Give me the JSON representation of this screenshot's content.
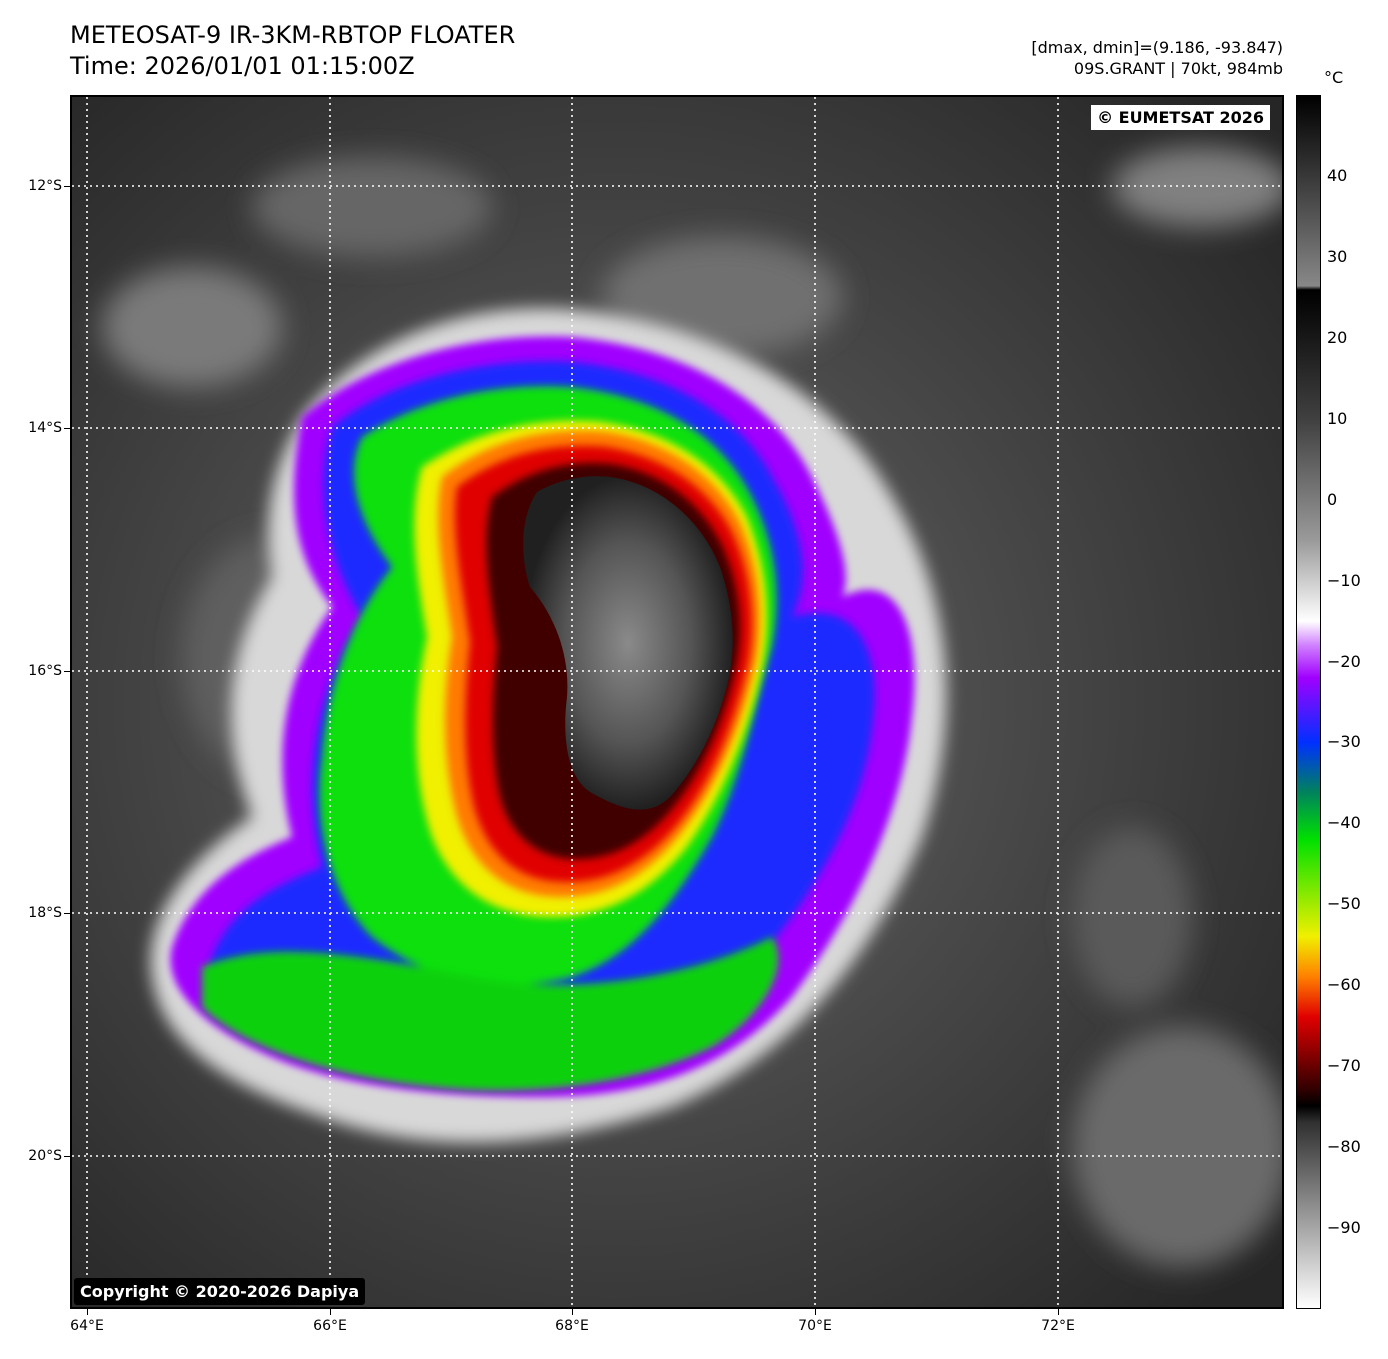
{
  "header": {
    "title": "METEOSAT-9 IR-3KM-RBTOP FLOATER",
    "time": "Time: 2026/01/01 01:15:00Z",
    "range": "[dmax, dmin]=(9.186, -93.847)",
    "storm": "09S.GRANT | 70kt, 984mb"
  },
  "map": {
    "copyright_eumetsat": "© EUMETSAT 2026",
    "copyright_dapiya": "Copyright © 2020-2026 Dapiya",
    "lat_labels": [
      "12°S",
      "14°S",
      "16°S",
      "18°S",
      "20°S"
    ],
    "lon_labels": [
      "64°E",
      "66°E",
      "68°E",
      "70°E",
      "72°E"
    ],
    "lon_range": [
      63.87,
      73.87
    ],
    "lat_range": [
      -11.25,
      -21.25
    ],
    "gridlines": "dotted white"
  },
  "colorbar": {
    "unit": "°C",
    "ticks": [
      "40",
      "30",
      "20",
      "10",
      "0",
      "−10",
      "−20",
      "−30",
      "−40",
      "−50",
      "−60",
      "−70",
      "−80",
      "−90"
    ],
    "tick_values": [
      40,
      30,
      20,
      10,
      0,
      -10,
      -20,
      -30,
      -40,
      -50,
      -60,
      -70,
      -80,
      -90
    ],
    "range": [
      -100,
      50
    ],
    "colors": {
      "warm_top": "#000000",
      "gray_warm": "#888888",
      "white_cold": "#ffffff",
      "purple": "#a000ff",
      "blue": "#0030ff",
      "green": "#00e000",
      "yellow": "#f0f000",
      "orange": "#ff8000",
      "red": "#e00000",
      "dark_red": "#300000",
      "coldest": "#ffffff"
    }
  }
}
